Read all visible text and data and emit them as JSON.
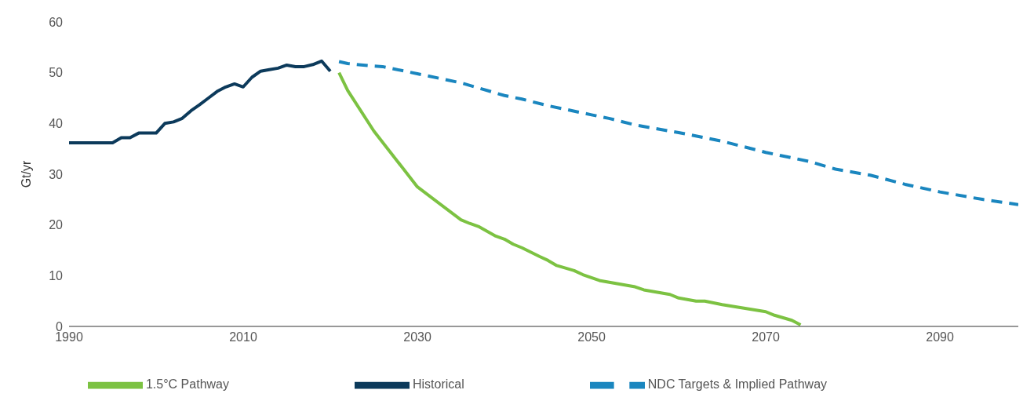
{
  "chart_data": {
    "type": "line",
    "ylabel": "Gt/yr",
    "xlim": [
      1990,
      2099
    ],
    "xticks": [
      1990,
      2010,
      2030,
      2050,
      2070,
      2090
    ],
    "ylim": [
      0,
      60
    ],
    "yticks": [
      0,
      10,
      20,
      30,
      40,
      50,
      60
    ],
    "grid": false,
    "legend": "bottom",
    "marker": "none",
    "series": [
      {
        "name": "Historical",
        "color": "#0c3a5b",
        "line_style": "solid",
        "x": [
          1990,
          1991,
          1992,
          1993,
          1994,
          1995,
          1996,
          1997,
          1998,
          1999,
          2000,
          2001,
          2002,
          2003,
          2004,
          2005,
          2006,
          2007,
          2008,
          2009,
          2010,
          2011,
          2012,
          2013,
          2014,
          2015,
          2016,
          2017,
          2018,
          2019,
          2020
        ],
        "values": [
          36.2,
          36.2,
          36.2,
          36.2,
          36.2,
          36.2,
          37.2,
          37.2,
          38.1,
          38.1,
          38.1,
          40,
          40.3,
          41,
          42.5,
          43.7,
          45,
          46.3,
          47.2,
          47.8,
          47.2,
          49.1,
          50.3,
          50.6,
          50.9,
          51.5,
          51.2,
          51.2,
          51.6,
          52.3,
          50.3
        ]
      },
      {
        "name": "NDC Targets & Implied Pathway",
        "color": "#1a86bf",
        "line_style": "dashed",
        "x": [
          2021,
          2022,
          2025,
          2026,
          2030,
          2035,
          2037,
          2040,
          2042,
          2045,
          2050,
          2052,
          2055,
          2060,
          2065,
          2070,
          2075,
          2078,
          2082,
          2086,
          2090,
          2095,
          2099
        ],
        "values": [
          52.2,
          51.8,
          51.3,
          51.2,
          49.8,
          48,
          47,
          45.5,
          44.8,
          43.5,
          41.7,
          41,
          39.7,
          38.2,
          36.5,
          34.3,
          32.5,
          31,
          29.8,
          28,
          26.5,
          25,
          24
        ]
      },
      {
        "name": "1.5°C Pathway",
        "color": "#7cc242",
        "line_style": "solid",
        "x": [
          2021,
          2022,
          2025,
          2030,
          2035,
          2036,
          2037,
          2039,
          2040,
          2041,
          2042,
          2044,
          2045,
          2046,
          2048,
          2049,
          2051,
          2055,
          2056,
          2059,
          2060,
          2062,
          2063,
          2065,
          2070,
          2071,
          2073,
          2074
        ],
        "values": [
          50,
          46.5,
          38.5,
          27.5,
          21,
          20.3,
          19.7,
          17.8,
          17.2,
          16.2,
          15.5,
          13.8,
          13,
          12,
          11,
          10.2,
          9,
          7.8,
          7.2,
          6.3,
          5.6,
          5,
          5,
          4.3,
          2.9,
          2.2,
          1.2,
          0.3
        ]
      }
    ]
  }
}
